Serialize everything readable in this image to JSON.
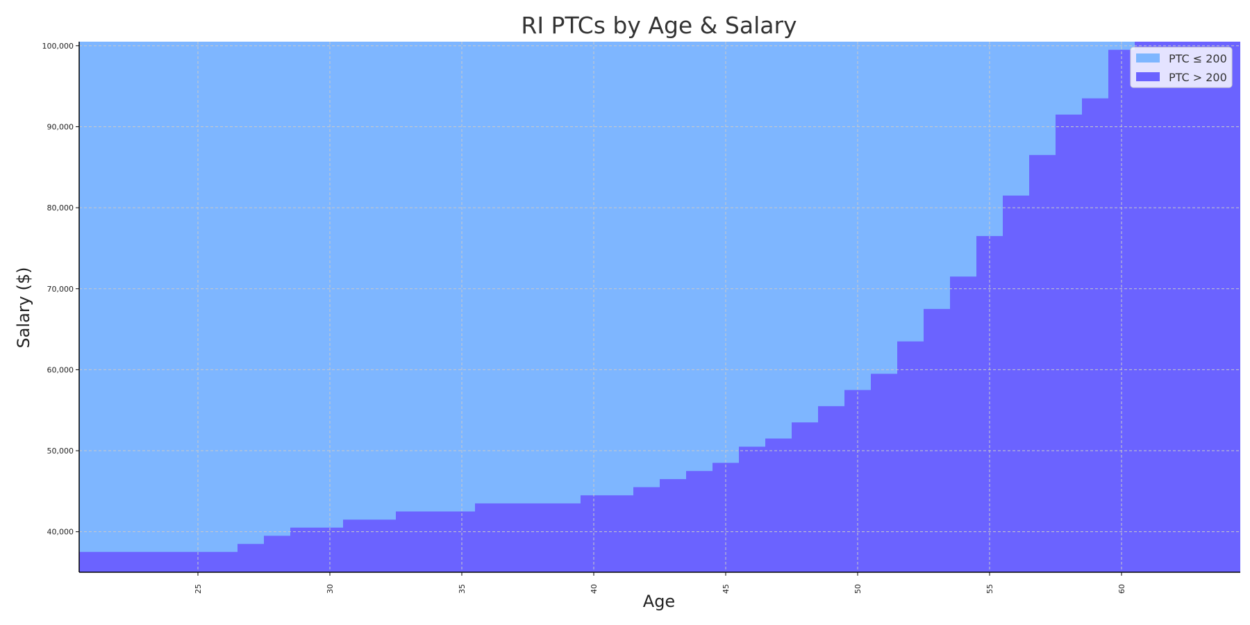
{
  "chart_data": {
    "type": "area",
    "title": "RI PTCs by Age & Salary",
    "xlabel": "Age",
    "ylabel": "Salary ($)",
    "xlim": [
      20.5,
      64.5
    ],
    "ylim": [
      35000,
      100500
    ],
    "xticks": [
      25,
      30,
      35,
      40,
      45,
      50,
      55,
      60
    ],
    "yticks": [
      40000,
      50000,
      60000,
      70000,
      80000,
      90000,
      100000
    ],
    "ytick_labels": [
      "40,000",
      "50,000",
      "60,000",
      "70,000",
      "80,000",
      "90,000",
      "100,000"
    ],
    "xtick_labels": [
      "25",
      "30",
      "35",
      "40",
      "45",
      "50",
      "55",
      "60"
    ],
    "grid": true,
    "legend_position": "top-right",
    "series": [
      {
        "name": "PTC ≤ 200",
        "color": "#7eb6ff"
      },
      {
        "name": "PTC > 200",
        "color": "#6b63ff"
      }
    ],
    "ages": [
      21,
      22,
      23,
      24,
      25,
      26,
      27,
      28,
      29,
      30,
      31,
      32,
      33,
      34,
      35,
      36,
      37,
      38,
      39,
      40,
      41,
      42,
      43,
      44,
      45,
      46,
      47,
      48,
      49,
      50,
      51,
      52,
      53,
      54,
      55,
      56,
      57,
      58,
      59,
      60,
      61,
      62,
      63,
      64
    ],
    "threshold_salary": [
      37500,
      37500,
      37500,
      37500,
      37500,
      37500,
      38500,
      39500,
      40500,
      40500,
      41500,
      41500,
      42500,
      42500,
      42500,
      43500,
      43500,
      43500,
      43500,
      44500,
      44500,
      45500,
      46500,
      47500,
      48500,
      50500,
      51500,
      53500,
      55500,
      57500,
      59500,
      63500,
      67500,
      71500,
      76500,
      81500,
      86500,
      91500,
      93500,
      99500,
      100500,
      100500,
      100500,
      100500
    ]
  }
}
